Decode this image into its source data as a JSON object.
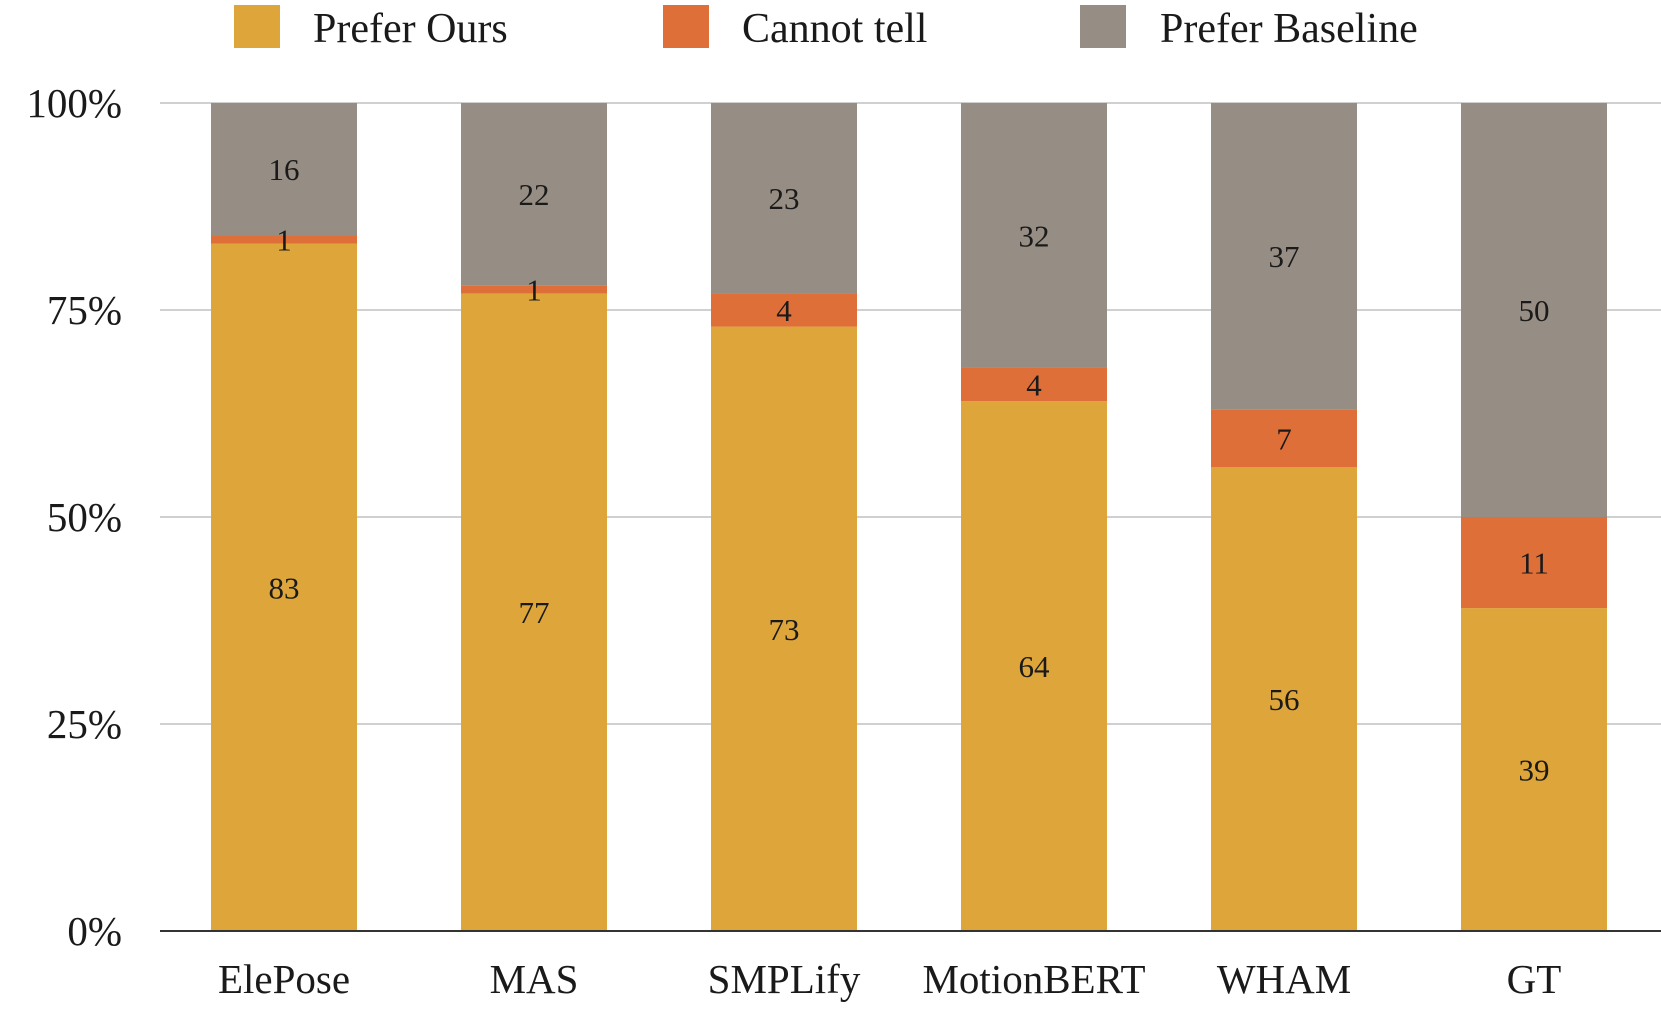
{
  "chart_data": {
    "type": "bar",
    "stacked": true,
    "normalized": true,
    "title": "",
    "xlabel": "",
    "ylabel": "",
    "ylim": [
      0,
      100
    ],
    "yticks": [
      "0%",
      "25%",
      "50%",
      "75%",
      "100%"
    ],
    "ytick_values": [
      0,
      25,
      50,
      75,
      100
    ],
    "grid": true,
    "legend_position": "top",
    "categories": [
      "ElePose",
      "MAS",
      "SMPLify",
      "MotionBERT",
      "WHAM",
      "GT"
    ],
    "series": [
      {
        "name": "Prefer Ours",
        "color": "#dea53a",
        "values": [
          83,
          77,
          73,
          64,
          56,
          39
        ],
        "labels": [
          "83",
          "77",
          "73",
          "64",
          "56",
          "39"
        ]
      },
      {
        "name": "Cannot tell",
        "color": "#df6f38",
        "values": [
          1,
          1,
          4,
          4,
          7,
          11
        ],
        "labels": [
          "1",
          "1",
          "4",
          "4",
          "7",
          "11"
        ]
      },
      {
        "name": "Prefer Baseline",
        "color": "#968e84",
        "values": [
          16,
          22,
          23,
          32,
          37,
          50
        ],
        "labels": [
          "16",
          "22",
          "23",
          "32",
          "37",
          "50"
        ]
      }
    ]
  }
}
